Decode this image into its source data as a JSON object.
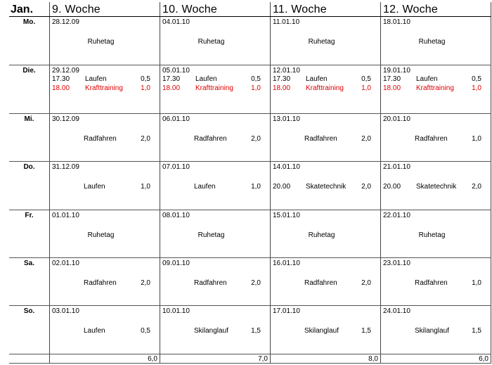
{
  "month": "Jan.",
  "weeks": [
    "9. Woche",
    "10. Woche",
    "11. Woche",
    "12. Woche"
  ],
  "days": [
    "Mo.",
    "Die.",
    "Mi.",
    "Do.",
    "Fr.",
    "Sa.",
    "So."
  ],
  "cells": [
    [
      {
        "date": "28.12.09",
        "entries": [
          {
            "act": "Ruhetag"
          }
        ]
      },
      {
        "date": "04.01.10",
        "entries": [
          {
            "act": "Ruhetag"
          }
        ]
      },
      {
        "date": "11.01.10",
        "entries": [
          {
            "act": "Ruhetag"
          }
        ]
      },
      {
        "date": "18.01.10",
        "entries": [
          {
            "act": "Ruhetag"
          }
        ]
      }
    ],
    [
      {
        "date": "29.12.09",
        "entries": [
          {
            "time": "17.30",
            "act": "Laufen",
            "dur": "0,5"
          },
          {
            "time": "18.00",
            "act": "Krafttraining",
            "dur": "1,0",
            "red": true
          }
        ]
      },
      {
        "date": "05.01.10",
        "entries": [
          {
            "time": "17.30",
            "act": "Laufen",
            "dur": "0,5"
          },
          {
            "time": "18.00",
            "act": "Krafttraining",
            "dur": "1,0",
            "red": true
          }
        ]
      },
      {
        "date": "12.01.10",
        "entries": [
          {
            "time": "17.30",
            "act": "Laufen",
            "dur": "0,5"
          },
          {
            "time": "18.00",
            "act": "Krafttraining",
            "dur": "1,0",
            "red": true
          }
        ]
      },
      {
        "date": "19.01.10",
        "entries": [
          {
            "time": "17.30",
            "act": "Laufen",
            "dur": "0,5"
          },
          {
            "time": "18.00",
            "act": "Krafttraining",
            "dur": "1,0",
            "red": true
          }
        ]
      }
    ],
    [
      {
        "date": "30.12.09",
        "entries": [
          {
            "act": "Radfahren",
            "dur": "2,0"
          }
        ]
      },
      {
        "date": "06.01.10",
        "entries": [
          {
            "act": "Radfahren",
            "dur": "2,0"
          }
        ]
      },
      {
        "date": "13.01.10",
        "entries": [
          {
            "act": "Radfahren",
            "dur": "2,0"
          }
        ]
      },
      {
        "date": "20.01.10",
        "entries": [
          {
            "act": "Radfahren",
            "dur": "1,0"
          }
        ]
      }
    ],
    [
      {
        "date": "31.12.09",
        "entries": [
          {
            "act": "Laufen",
            "dur": "1,0"
          }
        ]
      },
      {
        "date": "07.01.10",
        "entries": [
          {
            "act": "Laufen",
            "dur": "1,0"
          }
        ]
      },
      {
        "date": "14.01.10",
        "entries": [
          {
            "time": "20.00",
            "act": "Skatetechnik",
            "dur": "2,0"
          }
        ]
      },
      {
        "date": "21.01.10",
        "entries": [
          {
            "time": "20.00",
            "act": "Skatetechnik",
            "dur": "2,0"
          }
        ]
      }
    ],
    [
      {
        "date": "01.01.10",
        "entries": [
          {
            "act": "Ruhetag"
          }
        ]
      },
      {
        "date": "08.01.10",
        "entries": [
          {
            "act": "Ruhetag"
          }
        ]
      },
      {
        "date": "15.01.10",
        "entries": [
          {
            "act": "Ruhetag"
          }
        ]
      },
      {
        "date": "22.01.10",
        "entries": [
          {
            "act": "Ruhetag"
          }
        ]
      }
    ],
    [
      {
        "date": "02.01.10",
        "entries": [
          {
            "act": "Radfahren",
            "dur": "2,0"
          }
        ]
      },
      {
        "date": "09.01.10",
        "entries": [
          {
            "act": "Radfahren",
            "dur": "2,0"
          }
        ]
      },
      {
        "date": "16.01.10",
        "entries": [
          {
            "act": "Radfahren",
            "dur": "2,0"
          }
        ]
      },
      {
        "date": "23.01.10",
        "entries": [
          {
            "act": "Radfahren",
            "dur": "1,0"
          }
        ]
      }
    ],
    [
      {
        "date": "03.01.10",
        "entries": [
          {
            "act": "Laufen",
            "dur": "0,5"
          }
        ]
      },
      {
        "date": "10.01.10",
        "entries": [
          {
            "act": "Skilanglauf",
            "dur": "1,5"
          }
        ]
      },
      {
        "date": "17.01.10",
        "entries": [
          {
            "act": "Skilanglauf",
            "dur": "1,5"
          }
        ]
      },
      {
        "date": "24.01.10",
        "entries": [
          {
            "act": "Skilanglauf",
            "dur": "1,5"
          }
        ]
      }
    ]
  ],
  "totals": [
    "6,0",
    "7,0",
    "8,0",
    "6,0"
  ],
  "colors": {
    "highlight": "#e00000",
    "grid": "#444444"
  }
}
